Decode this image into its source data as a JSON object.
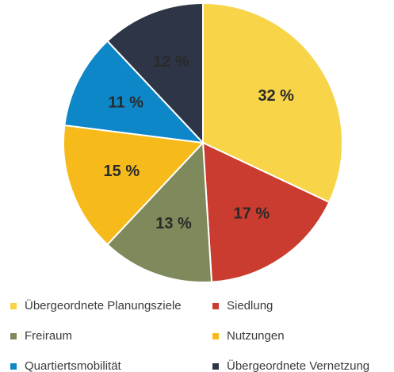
{
  "chart_data": {
    "type": "pie",
    "categories": [
      "Übergeordnete Planungsziele",
      "Siedlung",
      "Freiraum",
      "Nutzungen",
      "Quartiertsmobilität",
      "Übergeordnete Vernetzung"
    ],
    "values": [
      32,
      17,
      13,
      15,
      11,
      12
    ],
    "value_labels": [
      "32 %",
      "17 %",
      "13 %",
      "15 %",
      "11 %",
      "12 %"
    ],
    "colors": [
      "#f8d448",
      "#c93c2f",
      "#7e8a5b",
      "#f6ba1a",
      "#0e87c9",
      "#2e3546"
    ],
    "legend": "bottom"
  }
}
